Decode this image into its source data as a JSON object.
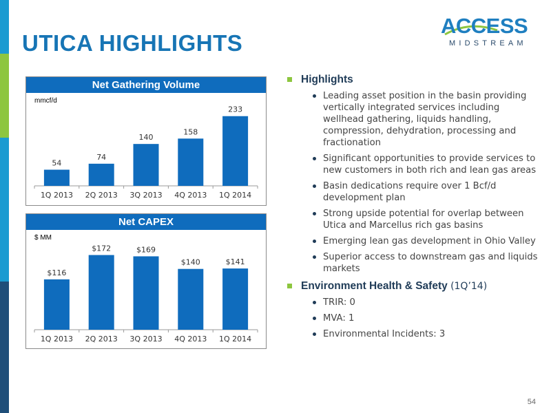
{
  "slide": {
    "title": "UTICA HIGHLIGHTS",
    "page_number": "54",
    "stripe_colors": [
      "#1a9bd1",
      "#8dc63f",
      "#8dc63f",
      "#1a9bd1",
      "#1a9bd1",
      "#1f4e79",
      "#1f4e79"
    ]
  },
  "logo": {
    "main": "ACCESS",
    "sub": "MIDSTREAM",
    "colors": {
      "blue": "#1f7fc0",
      "green": "#8dc63f",
      "navy": "#2a4a6b"
    }
  },
  "chart_data": [
    {
      "type": "bar",
      "title": "Net Gathering Volume",
      "ylabel": "mmcf/d",
      "categories": [
        "1Q 2013",
        "2Q 2013",
        "3Q 2013",
        "4Q 2013",
        "1Q 2014"
      ],
      "values": [
        54,
        74,
        140,
        158,
        233
      ],
      "data_labels": [
        "54",
        "74",
        "140",
        "158",
        "233"
      ],
      "color": "#0f6cbd",
      "ylim": [
        0,
        260
      ]
    },
    {
      "type": "bar",
      "title": "Net CAPEX",
      "ylabel": "$ MM",
      "categories": [
        "1Q 2013",
        "2Q 2013",
        "3Q 2013",
        "4Q 2013",
        "1Q 2014"
      ],
      "values": [
        116,
        172,
        169,
        140,
        141
      ],
      "data_labels": [
        "$116",
        "$172",
        "$169",
        "$140",
        "$141"
      ],
      "color": "#0f6cbd",
      "ylim": [
        0,
        195
      ]
    }
  ],
  "highlights": {
    "heading": "Highlights",
    "items": [
      "Leading asset position in the basin providing vertically integrated services including wellhead gathering, liquids handling, compression, dehydration, processing and fractionation",
      "Significant opportunities to provide services to new customers in both rich and lean gas areas",
      "Basin dedications require over 1 Bcf/d development plan",
      "Strong upside potential for overlap between Utica and Marcellus rich gas basins",
      "Emerging lean gas development in Ohio Valley",
      "Superior access to downstream gas and liquids markets"
    ]
  },
  "ehs": {
    "heading": "Environment Health & Safety",
    "heading_suffix": "(1Q’14)",
    "items": [
      "TRIR: 0",
      "MVA: 1",
      "Environmental Incidents: 3"
    ]
  }
}
